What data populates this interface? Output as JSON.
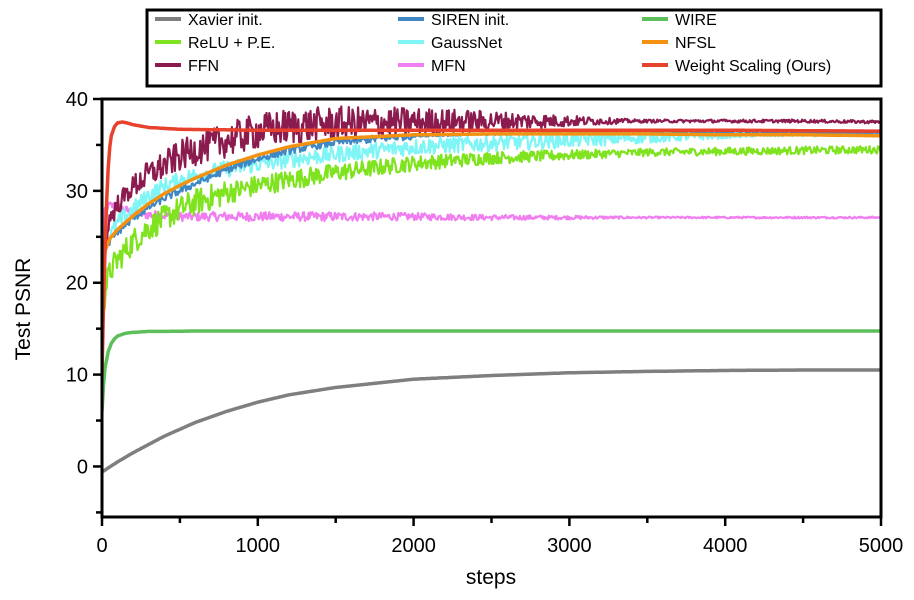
{
  "chart_data": {
    "type": "line",
    "title": "",
    "xlabel": "steps",
    "ylabel": "Test PSNR",
    "xlim": [
      0,
      5000
    ],
    "ylim": [
      -5.5,
      40
    ],
    "x_ticks": [
      0,
      1000,
      2000,
      3000,
      4000,
      5000
    ],
    "x_tick_labels": [
      "0",
      "1000",
      "2000",
      "3000",
      "4000",
      "5000"
    ],
    "x_minor_ticks": [
      500,
      1500,
      2500,
      3500,
      4500
    ],
    "y_ticks": [
      0,
      10,
      20,
      30,
      40
    ],
    "y_tick_labels": [
      "0",
      "10",
      "20",
      "30",
      "40"
    ],
    "y_minor_ticks": [
      -5,
      5,
      15,
      25,
      35
    ],
    "grid": false,
    "legend_position": "top",
    "legend_columns": 3,
    "series": [
      {
        "name": "Xavier init.",
        "color": "#7f7f7f",
        "y0": -0.6,
        "y_final": 10.5,
        "tau": 1000,
        "noise": 0,
        "x": [
          0,
          100,
          200,
          400,
          600,
          800,
          1000,
          1200,
          1500,
          2000,
          2500,
          3000,
          3500,
          4000,
          4500,
          5000
        ],
        "y": [
          -0.6,
          0.5,
          1.5,
          3.3,
          4.8,
          6.0,
          7.0,
          7.8,
          8.6,
          9.5,
          9.9,
          10.2,
          10.35,
          10.45,
          10.5,
          10.5
        ]
      },
      {
        "name": "ReLU + P.E.",
        "color": "#7fe31f",
        "noise": 1.2,
        "x": [
          0,
          30,
          60,
          100,
          150,
          200,
          300,
          400,
          500,
          600,
          800,
          1000,
          1200,
          1500,
          2000,
          2500,
          3000,
          3500,
          4000,
          4500,
          5000
        ],
        "y": [
          16.5,
          20.0,
          21.5,
          22.5,
          23.5,
          24.5,
          26.0,
          27.0,
          28.0,
          28.8,
          29.8,
          30.6,
          31.2,
          32.0,
          33.0,
          33.6,
          33.9,
          34.2,
          34.3,
          34.4,
          34.5
        ]
      },
      {
        "name": "FFN",
        "color": "#8b1a4f",
        "noise": 1.4,
        "x": [
          0,
          20,
          50,
          100,
          150,
          200,
          300,
          400,
          500,
          600,
          800,
          1000,
          1200,
          1500,
          2000,
          2500,
          3000,
          3500,
          4000,
          4500,
          5000
        ],
        "y": [
          18.0,
          24.0,
          27.0,
          28.5,
          29.5,
          30.5,
          31.8,
          32.8,
          33.8,
          34.5,
          35.5,
          36.5,
          37.0,
          37.3,
          37.5,
          37.6,
          37.6,
          37.6,
          37.6,
          37.6,
          37.5
        ]
      },
      {
        "name": "SIREN init.",
        "color": "#3f88c5",
        "noise": 0.4,
        "x": [
          0,
          20,
          50,
          100,
          200,
          300,
          400,
          500,
          600,
          800,
          1000,
          1200,
          1500,
          2000,
          2500,
          3000,
          3500,
          4000,
          4500,
          5000
        ],
        "y": [
          20.0,
          23.5,
          24.5,
          25.5,
          27.0,
          28.2,
          29.2,
          30.0,
          30.8,
          32.3,
          33.5,
          34.4,
          35.3,
          36.0,
          36.2,
          36.3,
          36.3,
          36.3,
          36.3,
          36.3
        ]
      },
      {
        "name": "GaussNet",
        "color": "#7ff5f5",
        "noise": 0.9,
        "x": [
          0,
          20,
          50,
          100,
          200,
          300,
          400,
          500,
          600,
          800,
          1000,
          1200,
          1500,
          2000,
          2500,
          3000,
          3500,
          4000,
          4500,
          5000
        ],
        "y": [
          21.0,
          24.0,
          25.0,
          26.5,
          28.0,
          29.5,
          30.5,
          31.2,
          31.7,
          32.4,
          32.9,
          33.4,
          34.0,
          34.8,
          35.2,
          35.6,
          35.8,
          36.0,
          36.1,
          36.1
        ]
      },
      {
        "name": "MFN",
        "color": "#f07ef0",
        "noise": 0.5,
        "x": [
          0,
          15,
          30,
          60,
          100,
          150,
          200,
          300,
          400,
          500,
          700,
          1000,
          1500,
          2000,
          2500,
          3000,
          3500,
          4000,
          4500,
          5000
        ],
        "y": [
          24.0,
          27.5,
          28.3,
          28.4,
          28.2,
          27.9,
          27.6,
          27.4,
          27.3,
          27.2,
          27.2,
          27.2,
          27.2,
          27.2,
          27.1,
          27.1,
          27.1,
          27.1,
          27.1,
          27.1
        ]
      },
      {
        "name": "WIRE",
        "color": "#5cbf5c",
        "noise": 0,
        "x": [
          0,
          10,
          20,
          40,
          60,
          80,
          100,
          150,
          200,
          300,
          400,
          600,
          800,
          1000,
          2000,
          3000,
          4000,
          5000
        ],
        "y": [
          6.0,
          9.0,
          10.8,
          12.5,
          13.4,
          13.9,
          14.2,
          14.5,
          14.6,
          14.7,
          14.7,
          14.75,
          14.75,
          14.75,
          14.75,
          14.75,
          14.75,
          14.75
        ]
      },
      {
        "name": "NFSL",
        "color": "#f39210",
        "noise": 0,
        "x": [
          0,
          20,
          50,
          100,
          200,
          300,
          400,
          500,
          600,
          800,
          1000,
          1200,
          1500,
          2000,
          2500,
          3000,
          3500,
          4000,
          4500,
          5000
        ],
        "y": [
          20.0,
          23.5,
          24.8,
          25.8,
          27.3,
          28.6,
          29.7,
          30.6,
          31.4,
          32.8,
          33.9,
          34.8,
          35.7,
          36.1,
          36.2,
          36.2,
          36.2,
          36.1,
          36.1,
          36.0
        ]
      },
      {
        "name": "Weight Scaling (Ours)",
        "color": "#e8412c",
        "noise": 0,
        "x": [
          0,
          10,
          20,
          30,
          40,
          50,
          60,
          80,
          100,
          130,
          160,
          200,
          300,
          500,
          1000,
          2000,
          3000,
          4000,
          5000
        ],
        "y": [
          10.0,
          18.0,
          24.0,
          29.0,
          32.5,
          34.8,
          36.0,
          37.0,
          37.4,
          37.5,
          37.4,
          37.2,
          36.9,
          36.7,
          36.6,
          36.6,
          36.6,
          36.6,
          36.5
        ]
      }
    ]
  }
}
